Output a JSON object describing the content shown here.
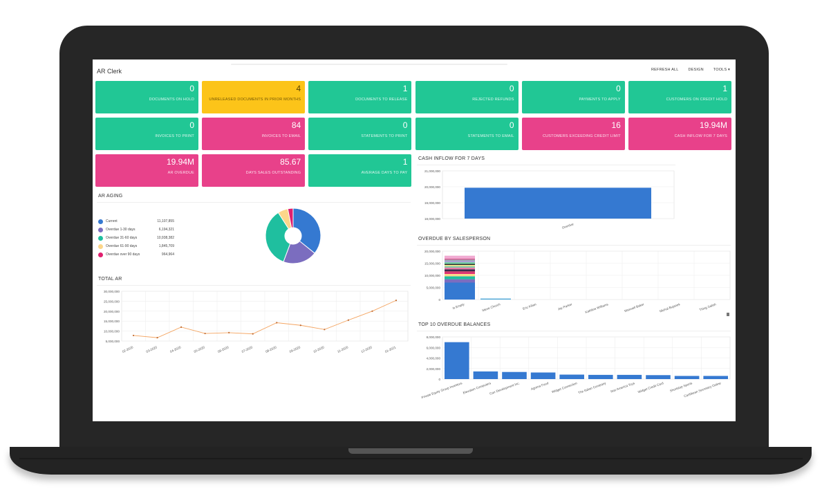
{
  "app": {
    "title": "AR Clerk"
  },
  "toolbar": {
    "refresh_all": "REFRESH ALL",
    "design": "DESIGN",
    "tools": "TOOLS ▾"
  },
  "tiles": [
    {
      "value": "0",
      "label": "DOCUMENTS ON HOLD",
      "color": "green"
    },
    {
      "value": "4",
      "label": "UNRELEASED DOCUMENTS IN PRIOR MONTHS",
      "color": "yellow"
    },
    {
      "value": "1",
      "label": "DOCUMENTS TO RELEASE",
      "color": "green"
    },
    {
      "value": "0",
      "label": "REJECTED REFUNDS",
      "color": "green"
    },
    {
      "value": "0",
      "label": "PAYMENTS TO APPLY",
      "color": "green"
    },
    {
      "value": "1",
      "label": "CUSTOMERS ON CREDIT HOLD",
      "color": "green"
    },
    {
      "value": "0",
      "label": "INVOICES TO PRINT",
      "color": "green"
    },
    {
      "value": "84",
      "label": "INVOICES TO EMAIL",
      "color": "pink"
    },
    {
      "value": "0",
      "label": "STATEMENTS TO PRINT",
      "color": "green"
    },
    {
      "value": "0",
      "label": "STATEMENTS TO EMAIL",
      "color": "green"
    },
    {
      "value": "16",
      "label": "CUSTOMERS EXCEEDING CREDIT LIMIT",
      "color": "pink"
    },
    {
      "value": "19.94M",
      "label": "CASH INFLOW FOR 7 DAYS",
      "color": "pink"
    },
    {
      "value": "19.94M",
      "label": "AR OVERDUE",
      "color": "pink"
    },
    {
      "value": "85.67",
      "label": "DAYS SALES OUTSTANDING",
      "color": "pink"
    },
    {
      "value": "1",
      "label": "AVERAGE DAYS TO PAY",
      "color": "green"
    }
  ],
  "panels": {
    "ar_aging": "AR AGING",
    "total_ar": "TOTAL AR",
    "cash_inflow": "CASH INFLOW FOR 7 DAYS",
    "overdue_salesperson": "OVERDUE BY SALESPERSON",
    "top10": "TOP 10 OVERDUE BALANCES"
  },
  "colors": {
    "green": "#21c795",
    "pink": "#e8418a",
    "yellow": "#fcc419",
    "bar_blue": "#3579d1",
    "line_orange": "#f4a460"
  },
  "chart_data": [
    {
      "type": "pie",
      "title": "AR AGING",
      "categories": [
        "Current",
        "Overdue 1-30 days",
        "Overdue 31-60 days",
        "Overdue 61-90 days",
        "Overdue over 90 days"
      ],
      "values": [
        11107855,
        6194321,
        10938382,
        1845709,
        964964
      ],
      "value_labels": [
        "11,107,855",
        "6,194,321",
        "10,938,382",
        "1,845,709",
        "964,964"
      ],
      "colors": [
        "#3579d1",
        "#7b6dbf",
        "#1fbf9f",
        "#fcd68a",
        "#e01f6e"
      ],
      "legend_position": "left"
    },
    {
      "type": "line",
      "title": "TOTAL AR",
      "categories": [
        "02-2020",
        "03-2020",
        "04-2020",
        "05-2020",
        "06-2020",
        "07-2020",
        "08-2020",
        "09-2020",
        "10-2020",
        "11-2020",
        "12-2020",
        "01-2021"
      ],
      "values": [
        7800000,
        6700000,
        12000000,
        8800000,
        9200000,
        8600000,
        14200000,
        12900000,
        10800000,
        15500000,
        20000000,
        25400000
      ],
      "yticks": [
        "5,000,000",
        "10,000,000",
        "15,000,000",
        "20,000,000",
        "25,000,000",
        "30,000,000"
      ],
      "ylim": [
        5000000,
        30000000
      ],
      "grid": true
    },
    {
      "type": "bar",
      "title": "CASH INFLOW FOR 7 DAYS",
      "categories": [
        "Overdue"
      ],
      "values": [
        19940000
      ],
      "yticks": [
        "18,000,000",
        "19,000,000",
        "20,000,000",
        "21,000,000"
      ],
      "ylim": [
        18000000,
        21000000
      ]
    },
    {
      "type": "bar",
      "title": "OVERDUE BY SALESPERSON",
      "stacked": true,
      "categories": [
        "Is Empty",
        "Steve Church",
        "Eric Kilian",
        "Jay Parker",
        "Kathline Williams",
        "Maxwell Baker",
        "Michal Bujanek",
        "Thing Salish"
      ],
      "values": [
        18100000,
        400000,
        0,
        0,
        0,
        0,
        0,
        0
      ],
      "yticks": [
        "0",
        "5,000,000",
        "10,000,000",
        "15,000,000",
        "20,000,000"
      ],
      "ylim": [
        0,
        20000000
      ]
    },
    {
      "type": "bar",
      "title": "TOP 10 OVERDUE BALANCES",
      "categories": [
        "Private Equity Group Investors",
        "Elevation Computers",
        "Carr Development Inc.",
        "Agrena Food",
        "Widget Connection",
        "The Italian Company",
        "Star America Toys",
        "Widget Credit Card",
        "Shortstop Sports",
        "Caribbean Secretary Online"
      ],
      "values": [
        7000000,
        1450000,
        1350000,
        1250000,
        850000,
        800000,
        800000,
        750000,
        600000,
        600000
      ],
      "yticks": [
        "0",
        "2,000,000",
        "4,000,000",
        "6,000,000",
        "8,000,000"
      ],
      "ylim": [
        0,
        8000000
      ]
    }
  ]
}
